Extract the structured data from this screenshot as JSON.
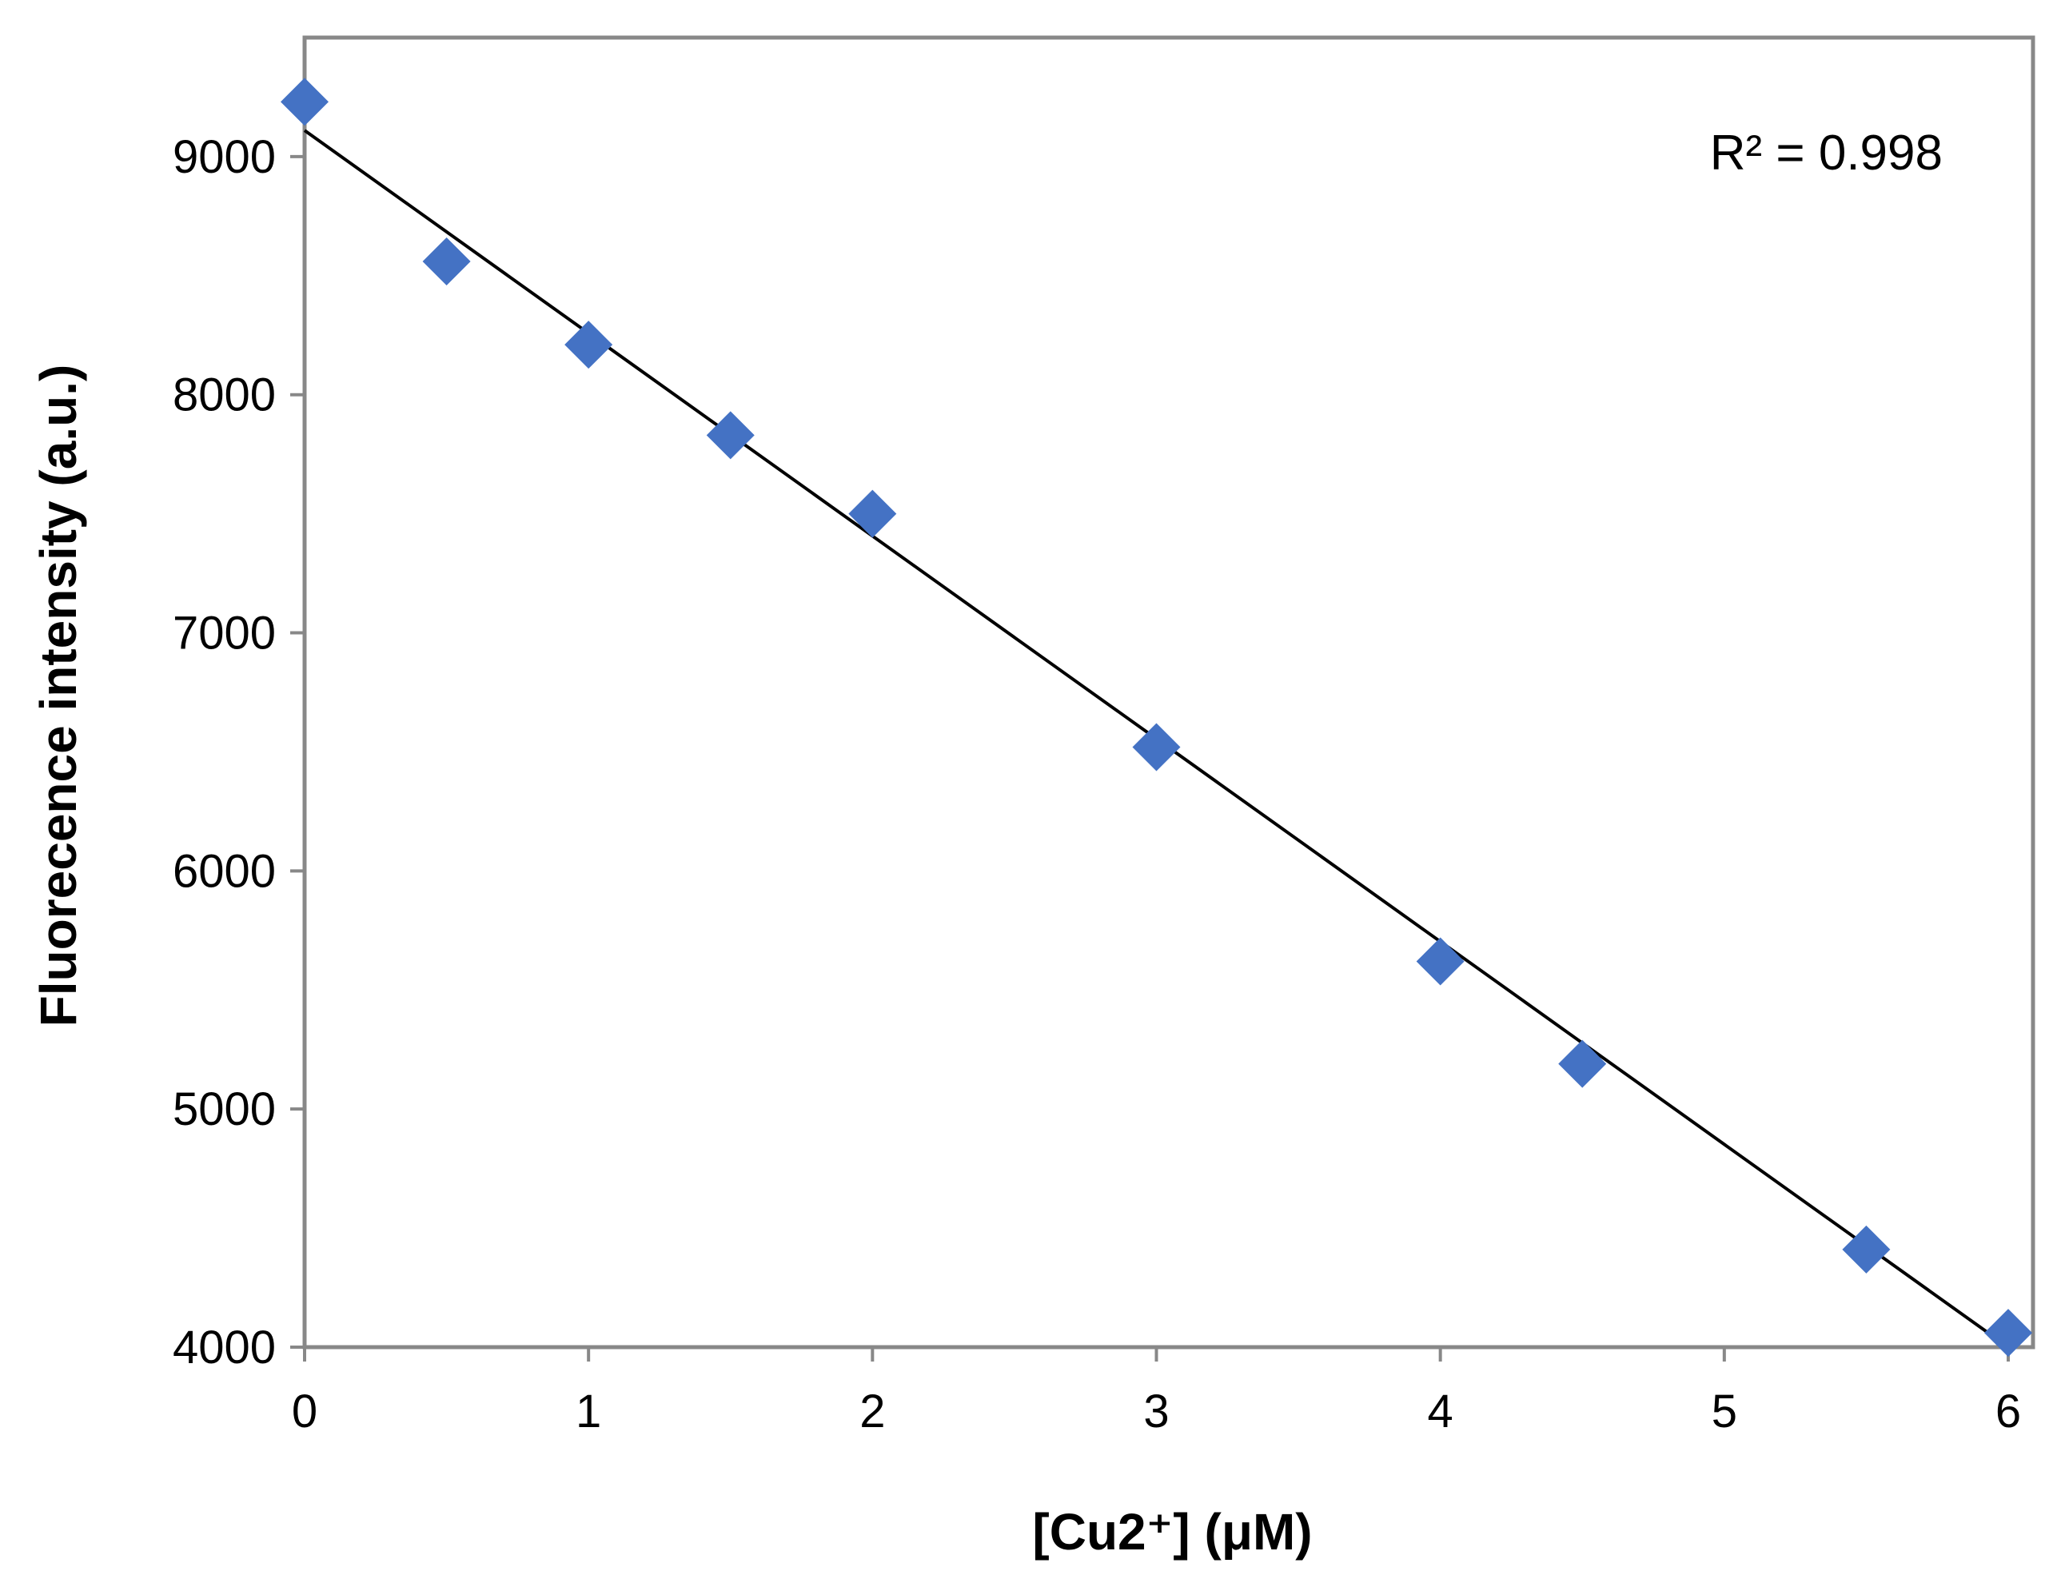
{
  "chart_data": {
    "type": "scatter",
    "xlabel": "[Cu2⁺] (μM)",
    "ylabel": "Fluorecence intensity (a.u.)",
    "xlim": [
      0,
      6
    ],
    "ylim": [
      4000,
      9500
    ],
    "xticks": [
      0,
      1,
      2,
      3,
      4,
      5,
      6
    ],
    "yticks": [
      4000,
      5000,
      6000,
      7000,
      8000,
      9000
    ],
    "grid": false,
    "legend": "none",
    "marker_color": "#4472C4",
    "trendline_color": "#000000",
    "axis_color": "#888888",
    "series": [
      {
        "x": [
          0,
          0.5,
          1,
          1.5,
          2,
          3,
          4,
          4.5,
          5.5,
          6
        ],
        "y": [
          9230,
          8560,
          8210,
          7830,
          7500,
          6520,
          5620,
          5190,
          4410,
          4060
        ]
      }
    ],
    "trendline": {
      "x": [
        0,
        6
      ],
      "y": [
        9110,
        4000
      ]
    },
    "annotations": [
      {
        "text": "R² = 0.998",
        "position": "top-right"
      }
    ]
  }
}
